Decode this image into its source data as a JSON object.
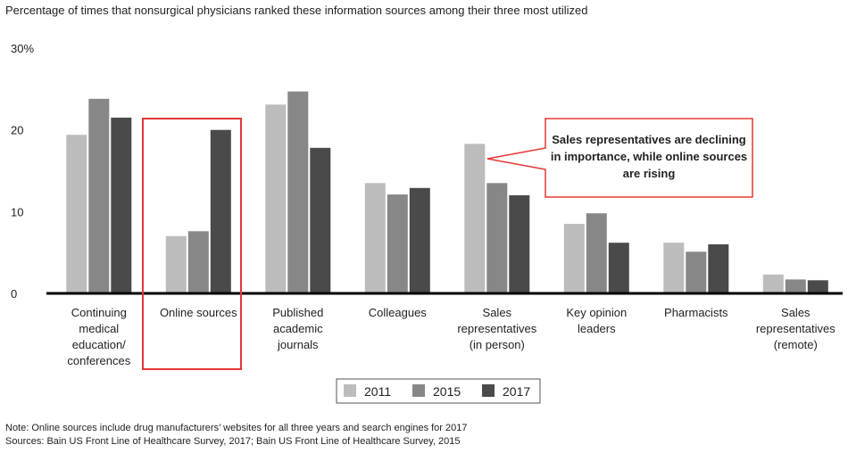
{
  "subtitle": "Percentage of times that nonsurgical physicians ranked these information sources among their three most utilized",
  "note": "Note: Online sources include drug manufacturers’ websites for all three years and search engines for 2017",
  "sources": "Sources: Bain US Front Line of Healthcare Survey, 2017; Bain US Front Line of Healthcare Survey, 2015",
  "callout": {
    "lines": [
      "Sales representatives are declining",
      "in importance, while online sources",
      "are rising"
    ]
  },
  "chart_data": {
    "type": "bar",
    "title": "",
    "xlabel": "",
    "ylabel": "",
    "ylim": [
      0,
      30
    ],
    "y_ticks": [
      {
        "value": 0,
        "label": "0"
      },
      {
        "value": 10,
        "label": "10"
      },
      {
        "value": 20,
        "label": "20"
      },
      {
        "value": 30,
        "label": "30%"
      }
    ],
    "grid": false,
    "legend_position": "bottom-center",
    "categories": [
      [
        "Continuing",
        "medical",
        "education/",
        "conferences"
      ],
      [
        "Online sources"
      ],
      [
        "Published",
        "academic",
        "journals"
      ],
      [
        "Colleagues"
      ],
      [
        "Sales",
        "representatives",
        "(in person)"
      ],
      [
        "Key opinion",
        "leaders"
      ],
      [
        "Pharmacists"
      ],
      [
        "Sales",
        "representatives",
        "(remote)"
      ]
    ],
    "highlighted_category": 1,
    "series": [
      {
        "name": "2011",
        "color": "#bcbcbc",
        "values": [
          19.4,
          7.0,
          23.1,
          13.5,
          18.3,
          8.5,
          6.2,
          2.3
        ]
      },
      {
        "name": "2015",
        "color": "#878787",
        "values": [
          23.8,
          7.6,
          24.7,
          12.1,
          13.5,
          9.8,
          5.1,
          1.7
        ]
      },
      {
        "name": "2017",
        "color": "#4a4a4a",
        "values": [
          21.5,
          20.0,
          17.8,
          12.9,
          12.0,
          6.2,
          6.0,
          1.6
        ]
      }
    ]
  }
}
